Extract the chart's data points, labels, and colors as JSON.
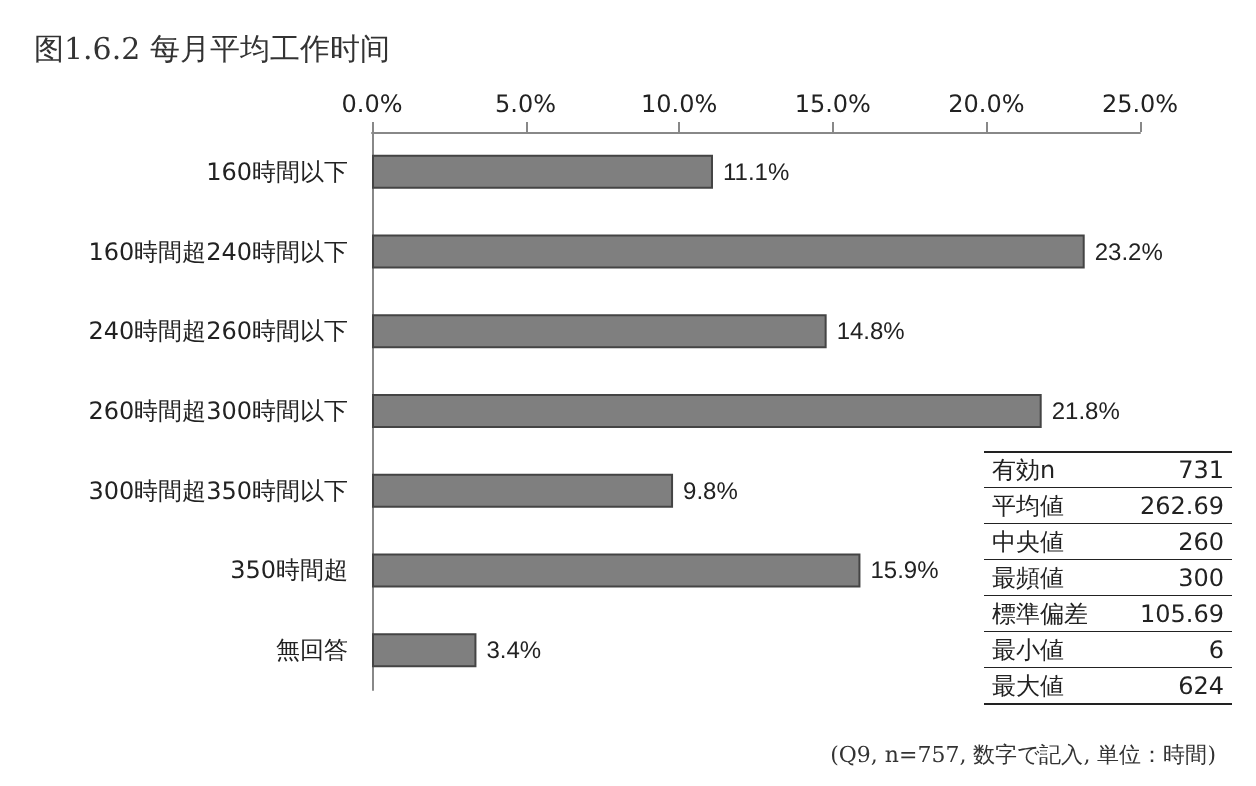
{
  "chart_data": {
    "type": "bar",
    "orientation": "horizontal",
    "title": "图1.6.2 每月平均工作时间",
    "categories": [
      "160時間以下",
      "160時間超240時間以下",
      "240時間超260時間以下",
      "260時間超300時間以下",
      "300時間超350時間以下",
      "350時間超",
      "無回答"
    ],
    "values": [
      11.1,
      23.2,
      14.8,
      21.8,
      9.8,
      15.9,
      3.4
    ],
    "value_labels": [
      "11.1%",
      "23.2%",
      "14.8%",
      "21.8%",
      "9.8%",
      "15.9%",
      "3.4%"
    ],
    "color": "#7f7f7f",
    "xlim": [
      0,
      25
    ],
    "xticks": [
      {
        "value": 0,
        "label": "0.0%"
      },
      {
        "value": 5,
        "label": "5.0%"
      },
      {
        "value": 10,
        "label": "10.0%"
      },
      {
        "value": 15,
        "label": "15.0%"
      },
      {
        "value": 20,
        "label": "20.0%"
      },
      {
        "value": 25,
        "label": "25.0%"
      }
    ],
    "grid": false,
    "annotations": [
      "(Q9, n=757, 数字で記入, 単位：時間)",
      "有効n",
      "731",
      "平均値",
      "262.69",
      "中央値",
      "260",
      "最頻値",
      "300",
      "標準偏差",
      "105.69",
      "最小値",
      "6",
      "最大値",
      "624"
    ]
  }
}
